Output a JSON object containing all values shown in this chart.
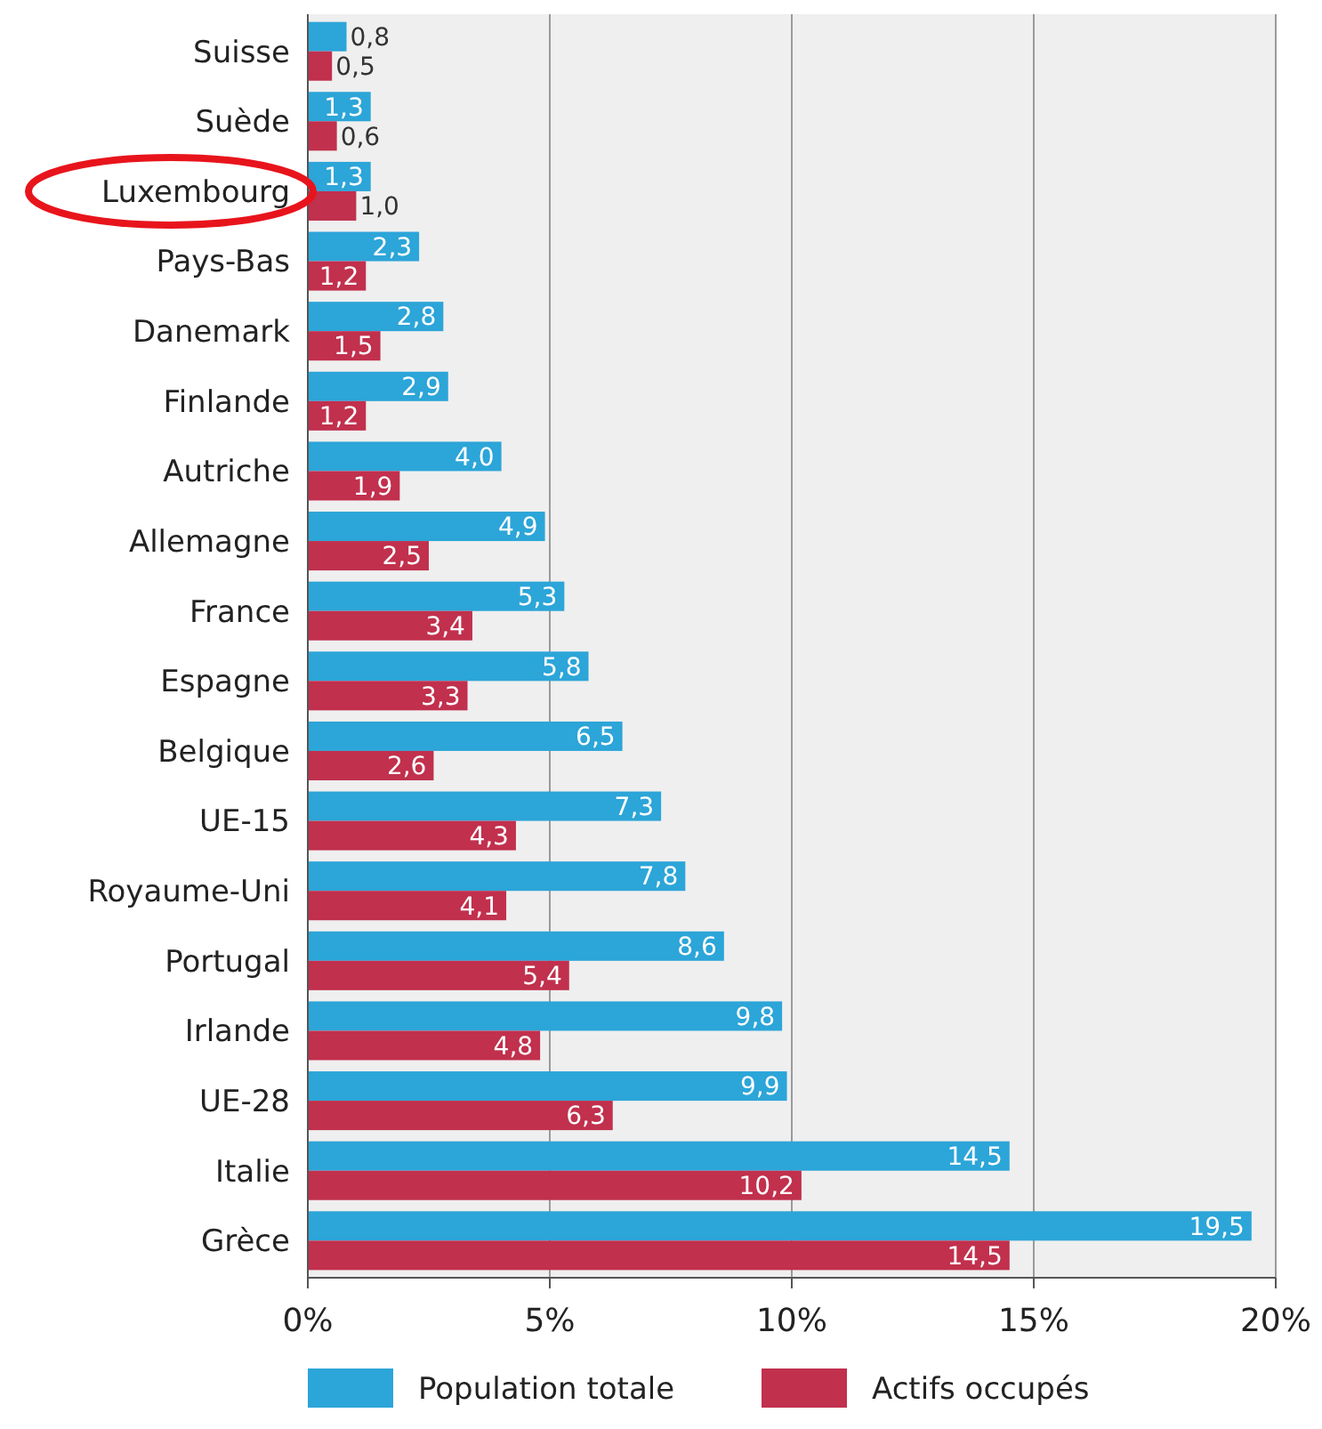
{
  "chart_data": {
    "type": "bar",
    "orientation": "horizontal",
    "categories": [
      "Suisse",
      "Suède",
      "Luxembourg",
      "Pays-Bas",
      "Danemark",
      "Finlande",
      "Autriche",
      "Allemagne",
      "France",
      "Espagne",
      "Belgique",
      "UE-15",
      "Royaume-Uni",
      "Portugal",
      "Irlande",
      "UE-28",
      "Italie",
      "Grèce"
    ],
    "series": [
      {
        "name": "Population totale",
        "color": "#2ca5d8",
        "values": [
          0.8,
          1.3,
          1.3,
          2.3,
          2.8,
          2.9,
          4.0,
          4.9,
          5.3,
          5.8,
          6.5,
          7.3,
          7.8,
          8.6,
          9.8,
          9.9,
          14.5,
          19.5
        ],
        "value_labels": [
          "0,8",
          "1,3",
          "1,3",
          "2,3",
          "2,8",
          "2,9",
          "4,0",
          "4,9",
          "5,3",
          "5,8",
          "6,5",
          "7,3",
          "7,8",
          "8,6",
          "9,8",
          "9,9",
          "14,5",
          "19,5"
        ]
      },
      {
        "name": "Actifs occupés",
        "color": "#c1304d",
        "values": [
          0.5,
          0.6,
          1.0,
          1.2,
          1.5,
          1.2,
          1.9,
          2.5,
          3.4,
          3.3,
          2.6,
          4.3,
          4.1,
          5.4,
          4.8,
          6.3,
          10.2,
          14.5
        ],
        "value_labels": [
          "0,5",
          "0,6",
          "1,0",
          "1,2",
          "1,5",
          "1,2",
          "1,9",
          "2,5",
          "3,4",
          "3,3",
          "2,6",
          "4,3",
          "4,1",
          "5,4",
          "4,8",
          "6,3",
          "10,2",
          "14,5"
        ]
      }
    ],
    "xlim": [
      0,
      20
    ],
    "xticks": [
      {
        "value": 0,
        "label": "0%"
      },
      {
        "value": 5,
        "label": "5%"
      },
      {
        "value": 10,
        "label": "10%"
      },
      {
        "value": 15,
        "label": "15%"
      },
      {
        "value": 20,
        "label": "20%"
      }
    ],
    "grid": "x",
    "legend": "bottom"
  }
}
